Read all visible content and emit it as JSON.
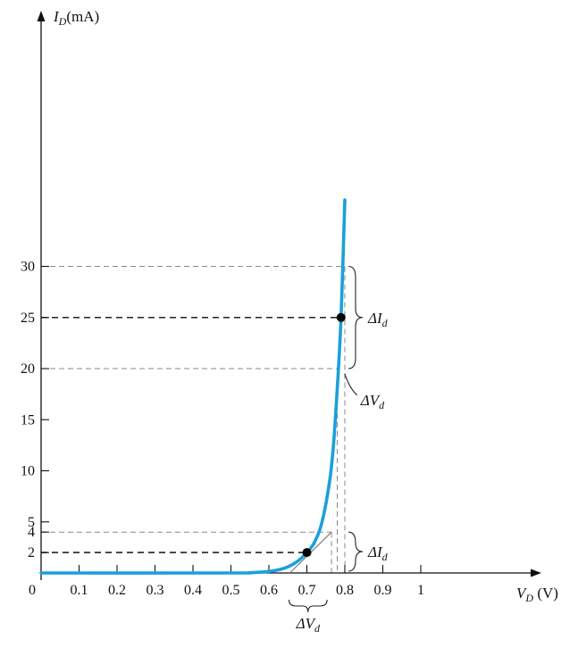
{
  "chart_data": {
    "type": "line",
    "xlabel": {
      "var": "V",
      "sub": "D",
      "unit": "(V)"
    },
    "ylabel": {
      "var": "I",
      "sub": "D",
      "unit": "(mA)"
    },
    "x_ticks": [
      0.1,
      0.2,
      0.3,
      0.4,
      0.5,
      0.6,
      0.7,
      0.8,
      0.9,
      1
    ],
    "x_tick_labels": [
      "0.1",
      "0.2",
      "0.3",
      "0.4",
      "0.5",
      "0.6",
      "0.7",
      "0.8",
      "0.9",
      "1"
    ],
    "y_ticks": [
      2,
      4,
      5,
      10,
      15,
      20,
      25,
      30
    ],
    "y_tick_labels": [
      "2",
      "4",
      "5",
      "10",
      "15",
      "20",
      "25",
      "30"
    ],
    "origin_label": "0",
    "xlim": [
      0,
      1.15
    ],
    "ylim": [
      0,
      39
    ],
    "grid": false,
    "series": [
      {
        "color": "#1aa0dc",
        "x": [
          0,
          0.5,
          0.55,
          0.6,
          0.63,
          0.65,
          0.67,
          0.69,
          0.7,
          0.72,
          0.74,
          0.76,
          0.77,
          0.78,
          0.79,
          0.8
        ],
        "y": [
          0,
          0,
          0.03,
          0.15,
          0.35,
          0.6,
          1.0,
          1.6,
          2.0,
          3.0,
          5.0,
          9.0,
          12.5,
          18,
          25,
          36.5
        ]
      }
    ],
    "operating_points": [
      {
        "x": 0.7,
        "y": 2
      },
      {
        "x": 0.79,
        "y": 25
      }
    ],
    "tangent_low": {
      "from": [
        0.655,
        0
      ],
      "to": [
        0.765,
        4
      ]
    },
    "dashed_guides": [
      {
        "y": 30,
        "x_end": 0.8,
        "x_drop": 0.8,
        "weight": "light"
      },
      {
        "y": 25,
        "x_end": 0.79,
        "weight": "dark"
      },
      {
        "y": 20,
        "x_end": 0.78,
        "x_drop": 0.78,
        "weight": "light"
      },
      {
        "y": 4,
        "x_end": 0.765,
        "x_drop": 0.765,
        "weight": "light"
      },
      {
        "y": 2,
        "x_end": 0.7,
        "weight": "dark"
      }
    ],
    "annotations": [
      {
        "text": "ΔI",
        "sub": "d",
        "attached_to": "upper-y-brace"
      },
      {
        "text": "ΔV",
        "sub": "d",
        "attached_to": "upper-x-leader"
      },
      {
        "text": "ΔI",
        "sub": "d",
        "attached_to": "lower-y-brace"
      },
      {
        "text": "ΔV",
        "sub": "d",
        "attached_to": "lower-x-brace"
      }
    ],
    "colors": {
      "curve": "#1aa0dc",
      "axis": "#111111",
      "guide_dark": "#222222",
      "guide_light": "#8a8a8a"
    }
  }
}
